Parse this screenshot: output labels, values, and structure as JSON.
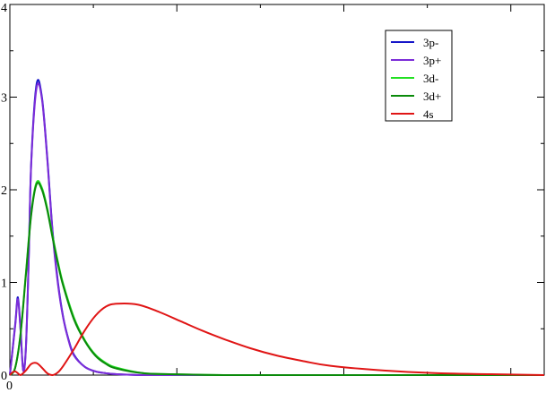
{
  "chart_data": {
    "type": "line",
    "title": "",
    "xlabel": "",
    "ylabel": "",
    "xlim": [
      0,
      1
    ],
    "ylim": [
      0,
      4
    ],
    "x_ticks": [
      {
        "value": 0,
        "label": "0"
      }
    ],
    "y_ticks": [
      {
        "value": 0,
        "label": "0"
      },
      {
        "value": 1,
        "label": "1"
      },
      {
        "value": 2,
        "label": "2"
      },
      {
        "value": 3,
        "label": "3"
      },
      {
        "value": 4,
        "label": "4"
      }
    ],
    "grid": false,
    "legend_position": "top-right",
    "series": [
      {
        "name": "3p-",
        "color": "#1515c8",
        "x": [
          0.0,
          0.01,
          0.015,
          0.02,
          0.025,
          0.03,
          0.035,
          0.04,
          0.05,
          0.06,
          0.07,
          0.08,
          0.09,
          0.1,
          0.11,
          0.12,
          0.14,
          0.16,
          0.18,
          0.2,
          0.25,
          0.3,
          0.4,
          0.5,
          0.6,
          1.0
        ],
        "y": [
          0.0,
          0.55,
          0.84,
          0.5,
          0.05,
          0.3,
          1.2,
          2.3,
          3.14,
          3.0,
          2.35,
          1.55,
          1.0,
          0.62,
          0.38,
          0.22,
          0.09,
          0.04,
          0.02,
          0.01,
          0.0,
          0.0,
          0.0,
          0.0,
          0.0,
          0.0
        ]
      },
      {
        "name": "3p+",
        "color": "#7b2cd8",
        "x": [
          0.0,
          0.01,
          0.015,
          0.02,
          0.025,
          0.03,
          0.035,
          0.04,
          0.05,
          0.06,
          0.07,
          0.08,
          0.09,
          0.1,
          0.11,
          0.12,
          0.14,
          0.16,
          0.18,
          0.2,
          0.25,
          0.3,
          0.4,
          0.5,
          0.6,
          1.0
        ],
        "y": [
          0.0,
          0.53,
          0.82,
          0.48,
          0.05,
          0.28,
          1.18,
          2.28,
          3.1,
          2.98,
          2.33,
          1.53,
          0.98,
          0.61,
          0.37,
          0.21,
          0.09,
          0.04,
          0.02,
          0.01,
          0.0,
          0.0,
          0.0,
          0.0,
          0.0,
          0.0
        ]
      },
      {
        "name": "3d-",
        "color": "#22e022",
        "x": [
          0.0,
          0.01,
          0.02,
          0.03,
          0.04,
          0.05,
          0.06,
          0.07,
          0.08,
          0.09,
          0.1,
          0.12,
          0.14,
          0.16,
          0.18,
          0.2,
          0.25,
          0.3,
          0.4,
          0.5,
          0.6,
          0.8,
          1.0
        ],
        "y": [
          0.0,
          0.08,
          0.45,
          1.1,
          1.75,
          2.08,
          2.02,
          1.8,
          1.5,
          1.22,
          0.98,
          0.62,
          0.38,
          0.22,
          0.13,
          0.08,
          0.02,
          0.01,
          0.0,
          0.0,
          0.0,
          0.0,
          0.0
        ]
      },
      {
        "name": "3d+",
        "color": "#0a8a0a",
        "x": [
          0.0,
          0.01,
          0.02,
          0.03,
          0.04,
          0.05,
          0.06,
          0.07,
          0.08,
          0.09,
          0.1,
          0.12,
          0.14,
          0.16,
          0.18,
          0.2,
          0.25,
          0.3,
          0.4,
          0.5,
          0.6,
          0.8,
          1.0
        ],
        "y": [
          0.0,
          0.08,
          0.44,
          1.08,
          1.73,
          2.06,
          2.0,
          1.78,
          1.48,
          1.2,
          0.96,
          0.6,
          0.37,
          0.21,
          0.12,
          0.07,
          0.02,
          0.01,
          0.0,
          0.0,
          0.0,
          0.0,
          0.0
        ]
      },
      {
        "name": "4s",
        "color": "#e01515",
        "x": [
          0.0,
          0.005,
          0.01,
          0.015,
          0.02,
          0.03,
          0.04,
          0.05,
          0.06,
          0.07,
          0.08,
          0.09,
          0.1,
          0.12,
          0.14,
          0.16,
          0.18,
          0.2,
          0.24,
          0.28,
          0.32,
          0.36,
          0.4,
          0.45,
          0.5,
          0.55,
          0.6,
          0.7,
          0.8,
          0.9,
          1.0
        ],
        "y": [
          0.0,
          0.03,
          0.04,
          0.02,
          0.0,
          0.05,
          0.12,
          0.13,
          0.08,
          0.02,
          0.0,
          0.03,
          0.1,
          0.28,
          0.48,
          0.64,
          0.74,
          0.77,
          0.76,
          0.68,
          0.58,
          0.48,
          0.39,
          0.29,
          0.21,
          0.15,
          0.1,
          0.05,
          0.02,
          0.01,
          0.0
        ]
      }
    ]
  }
}
